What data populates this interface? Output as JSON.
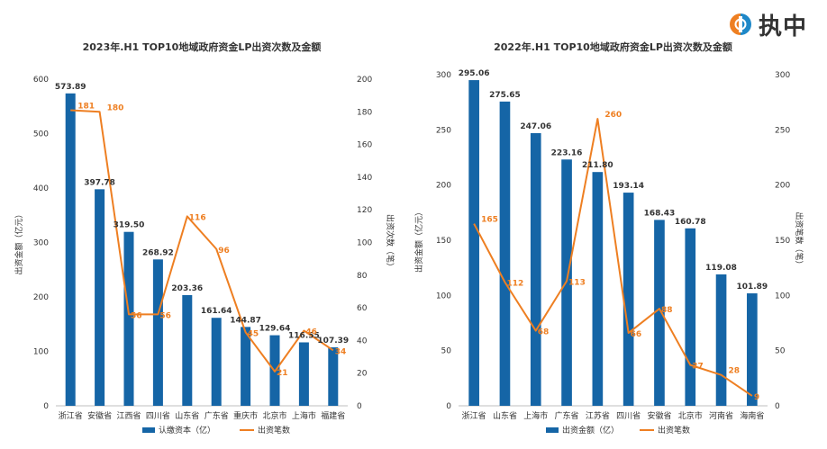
{
  "logo": {
    "text": "执中",
    "icon": "zhizhong-logo-icon"
  },
  "colors": {
    "bar": "#1565a6",
    "line": "#ee7f22",
    "axis": "#333333",
    "grid": "#bfbfbf"
  },
  "chart_data": [
    {
      "type": "bar+line",
      "title": "2023年.H1 TOP10地域政府资金LP出资次数及金额",
      "categories": [
        "浙江省",
        "安徽省",
        "江西省",
        "四川省",
        "山东省",
        "广东省",
        "重庆市",
        "北京市",
        "上海市",
        "福建省"
      ],
      "series": [
        {
          "name": "认缴资本（亿）",
          "type": "bar",
          "axis": "left",
          "values": [
            573.89,
            397.78,
            319.5,
            268.92,
            203.36,
            161.64,
            144.87,
            129.64,
            116.55,
            107.39
          ],
          "labels": [
            "573.89",
            "397.78",
            "319.50",
            "268.92",
            "203.36",
            "161.64",
            "144.87",
            "129.64",
            "116.55",
            "107.39"
          ]
        },
        {
          "name": "出资笔数",
          "type": "line",
          "axis": "right",
          "values": [
            181,
            180,
            56,
            56,
            116,
            96,
            45,
            21,
            46,
            34
          ],
          "labels": [
            "181",
            "180",
            "56",
            "56",
            "116",
            "96",
            "45",
            "21",
            "46",
            "34"
          ]
        }
      ],
      "ylabel_left": "出资金额（亿元）",
      "ylabel_right": "出资次数（笔）",
      "ylim_left": [
        0,
        600
      ],
      "yticks_left": [
        "0",
        "100",
        "200",
        "300",
        "400",
        "500",
        "600"
      ],
      "ylim_right": [
        0,
        200
      ],
      "yticks_right": [
        "0",
        "20",
        "40",
        "60",
        "80",
        "100",
        "120",
        "140",
        "160",
        "180",
        "200"
      ],
      "grid": false,
      "legend": "bottom"
    },
    {
      "type": "bar+line",
      "title": "2022年.H1 TOP10地域政府资金LP出资次数及金额",
      "categories": [
        "浙江省",
        "山东省",
        "上海市",
        "广东省",
        "江苏省",
        "四川省",
        "安徽省",
        "北京市",
        "河南省",
        "海南省"
      ],
      "series": [
        {
          "name": "出资金额（亿）",
          "type": "bar",
          "axis": "left",
          "values": [
            295.06,
            275.65,
            247.06,
            223.16,
            211.8,
            193.14,
            168.43,
            160.78,
            119.08,
            101.89
          ],
          "labels": [
            "295.06",
            "275.65",
            "247.06",
            "223.16",
            "211.80",
            "193.14",
            "168.43",
            "160.78",
            "119.08",
            "101.89"
          ]
        },
        {
          "name": "出资笔数",
          "type": "line",
          "axis": "right",
          "values": [
            165,
            112,
            68,
            113,
            260,
            66,
            88,
            37,
            28,
            9
          ],
          "labels": [
            "165",
            "112",
            "68",
            "113",
            "260",
            "66",
            "88",
            "37",
            "28",
            "9"
          ]
        }
      ],
      "ylabel_left": "出资金额（亿元）",
      "ylabel_right": "出资笔数（笔）",
      "ylim_left": [
        0,
        300
      ],
      "yticks_left": [
        "0",
        "50",
        "100",
        "150",
        "200",
        "250",
        "300"
      ],
      "ylim_right": [
        0,
        300
      ],
      "yticks_right": [
        "0",
        "50",
        "100",
        "150",
        "200",
        "250",
        "300"
      ],
      "grid": false,
      "legend": "bottom"
    }
  ]
}
